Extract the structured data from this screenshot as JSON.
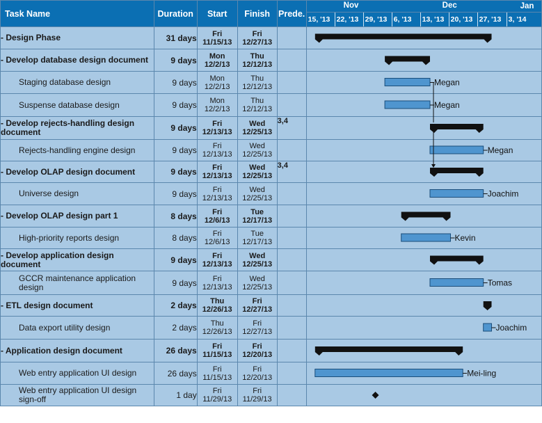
{
  "headers": {
    "task_name": "Task Name",
    "duration": "Duration",
    "start": "Start",
    "finish": "Finish",
    "predecessors": "Prede."
  },
  "months": [
    "Nov",
    "Dec",
    "Jan"
  ],
  "weeks": [
    "15, '13",
    "22, '13",
    "29, '13",
    "6, '13",
    "13, '13",
    "20, '13",
    "27, '13",
    "3, '14"
  ],
  "tasks": [
    {
      "name": "- Design Phase",
      "duration": "31 days",
      "start": [
        "Fri",
        "11/15/13"
      ],
      "finish": [
        "Fri",
        "12/27/13"
      ],
      "pred": "",
      "summary": true,
      "indent": false,
      "resource": ""
    },
    {
      "name": "- Develop database design document",
      "duration": "9 days",
      "start": [
        "Mon",
        "12/2/13"
      ],
      "finish": [
        "Thu",
        "12/12/13"
      ],
      "pred": "",
      "summary": true,
      "indent": false,
      "resource": ""
    },
    {
      "name": "Staging database design",
      "duration": "9 days",
      "start": [
        "Mon",
        "12/2/13"
      ],
      "finish": [
        "Thu",
        "12/12/13"
      ],
      "pred": "",
      "summary": false,
      "indent": true,
      "resource": "Megan"
    },
    {
      "name": "Suspense database design",
      "duration": "9 days",
      "start": [
        "Mon",
        "12/2/13"
      ],
      "finish": [
        "Thu",
        "12/12/13"
      ],
      "pred": "",
      "summary": false,
      "indent": true,
      "resource": "Megan"
    },
    {
      "name": "- Develop rejects-handling design document",
      "duration": "9 days",
      "start": [
        "Fri",
        "12/13/13"
      ],
      "finish": [
        "Wed",
        "12/25/13"
      ],
      "pred": "3,4",
      "summary": true,
      "indent": false,
      "resource": ""
    },
    {
      "name": "Rejects-handling engine design",
      "duration": "9 days",
      "start": [
        "Fri",
        "12/13/13"
      ],
      "finish": [
        "Wed",
        "12/25/13"
      ],
      "pred": "",
      "summary": false,
      "indent": true,
      "resource": "Megan"
    },
    {
      "name": "- Develop OLAP design document",
      "duration": "9 days",
      "start": [
        "Fri",
        "12/13/13"
      ],
      "finish": [
        "Wed",
        "12/25/13"
      ],
      "pred": "3,4",
      "summary": true,
      "indent": false,
      "resource": ""
    },
    {
      "name": "Universe design",
      "duration": "9 days",
      "start": [
        "Fri",
        "12/13/13"
      ],
      "finish": [
        "Wed",
        "12/25/13"
      ],
      "pred": "",
      "summary": false,
      "indent": true,
      "resource": "Joachim"
    },
    {
      "name": "- Develop OLAP design part 1",
      "duration": "8 days",
      "start": [
        "Fri",
        "12/6/13"
      ],
      "finish": [
        "Tue",
        "12/17/13"
      ],
      "pred": "",
      "summary": true,
      "indent": false,
      "resource": ""
    },
    {
      "name": "High-priority reports design",
      "duration": "8 days",
      "start": [
        "Fri",
        "12/6/13"
      ],
      "finish": [
        "Tue",
        "12/17/13"
      ],
      "pred": "",
      "summary": false,
      "indent": true,
      "resource": "Kevin"
    },
    {
      "name": "- Develop application design document",
      "duration": "9 days",
      "start": [
        "Fri",
        "12/13/13"
      ],
      "finish": [
        "Wed",
        "12/25/13"
      ],
      "pred": "",
      "summary": true,
      "indent": false,
      "resource": ""
    },
    {
      "name": "GCCR maintenance application design",
      "duration": "9 days",
      "start": [
        "Fri",
        "12/13/13"
      ],
      "finish": [
        "Wed",
        "12/25/13"
      ],
      "pred": "",
      "summary": false,
      "indent": true,
      "resource": "Tomas"
    },
    {
      "name": "- ETL design document",
      "duration": "2 days",
      "start": [
        "Thu",
        "12/26/13"
      ],
      "finish": [
        "Fri",
        "12/27/13"
      ],
      "pred": "",
      "summary": true,
      "indent": false,
      "resource": ""
    },
    {
      "name": "Data export utility design",
      "duration": "2 days",
      "start": [
        "Thu",
        "12/26/13"
      ],
      "finish": [
        "Fri",
        "12/27/13"
      ],
      "pred": "",
      "summary": false,
      "indent": true,
      "resource": "Joachim"
    },
    {
      "name": "- Application design document",
      "duration": "26 days",
      "start": [
        "Fri",
        "11/15/13"
      ],
      "finish": [
        "Fri",
        "12/20/13"
      ],
      "pred": "",
      "summary": true,
      "indent": false,
      "resource": ""
    },
    {
      "name": "Web entry application UI design",
      "duration": "26 days",
      "start": [
        "Fri",
        "11/15/13"
      ],
      "finish": [
        "Fri",
        "12/20/13"
      ],
      "pred": "",
      "summary": false,
      "indent": true,
      "resource": "Mei-ling"
    },
    {
      "name": "Web entry application UI design sign-off",
      "duration": "1 day",
      "start": [
        "Fri",
        "11/29/13"
      ],
      "finish": [
        "Fri",
        "11/29/13"
      ],
      "pred": "",
      "summary": false,
      "indent": true,
      "milestone": true,
      "resource": ""
    }
  ],
  "colors": {
    "header": "#0b6fb3",
    "row": "#a9c9e4",
    "task_bar": "#4f95cf",
    "summary_bar": "#111111"
  }
}
